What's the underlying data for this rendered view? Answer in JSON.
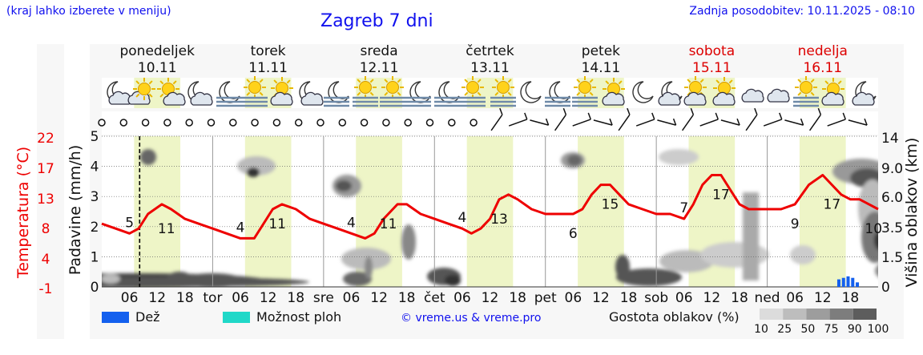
{
  "header": {
    "hint": "(kraj lahko izberete v meniju)",
    "title": "Zagreb 7 dni",
    "updated": "Zadnja posodobitev: 10.11.2025 - 08:10"
  },
  "colors": {
    "temperature": "#ee0000",
    "daylight": "#eef5c7",
    "rain": "#1460ee",
    "storm": "#20d8c8",
    "weekend": "#dd0000",
    "link": "#1010ee"
  },
  "days": [
    {
      "name": "ponedeljek",
      "date": "10.11",
      "weekend": false
    },
    {
      "name": "torek",
      "date": "11.11",
      "weekend": false
    },
    {
      "name": "sreda",
      "date": "12.11",
      "weekend": false
    },
    {
      "name": "četrtek",
      "date": "13.11",
      "weekend": false
    },
    {
      "name": "petek",
      "date": "14.11",
      "weekend": false
    },
    {
      "name": "sobota",
      "date": "15.11",
      "weekend": true
    },
    {
      "name": "nedelja",
      "date": "16.11",
      "weekend": true
    }
  ],
  "x_tick_labels": [
    "06",
    "12",
    "18",
    "tor",
    "06",
    "12",
    "18",
    "sre",
    "06",
    "12",
    "18",
    "čet",
    "06",
    "12",
    "18",
    "pet",
    "06",
    "12",
    "18",
    "sob",
    "06",
    "12",
    "18",
    "ned",
    "06",
    "12",
    "18"
  ],
  "legend": {
    "rain": "Dež",
    "storm": "Možnost ploh",
    "copyright": "© vreme.us & vreme.pro",
    "cloud_density": "Gostota oblakov (%)",
    "cloud_levels": [
      "10",
      "25",
      "50",
      "75",
      "90",
      "100"
    ]
  },
  "chart_data": {
    "type": "line",
    "title": "Zagreb 7 dni",
    "x_unit": "hours since 10.11 00:00",
    "xlim": [
      0,
      168
    ],
    "axes": {
      "temperature": {
        "label": "Temperatura (°C)",
        "ticks": [
          "22",
          "17",
          "13",
          "8",
          "4",
          "-1"
        ]
      },
      "precipitation": {
        "label": "Padavine (mm/h)",
        "ticks": [
          "5",
          "4",
          "3",
          "2",
          "1",
          "0"
        ],
        "ylim": [
          0,
          5
        ]
      },
      "cloud_height": {
        "label": "Višina oblakov (km)",
        "ticks": [
          "14",
          "9.0",
          "6.0",
          "3.5",
          "1.5",
          "0"
        ]
      }
    },
    "temperature_series": {
      "name": "Temperatura",
      "x": [
        0,
        3,
        6,
        8,
        10,
        13,
        15,
        18,
        21,
        24,
        27,
        30,
        33,
        35,
        37,
        39,
        42,
        45,
        48,
        51,
        54,
        57,
        59,
        61,
        64,
        66,
        69,
        72,
        75,
        78,
        80,
        82,
        84,
        86,
        88,
        90,
        93,
        96,
        99,
        102,
        104,
        106,
        108,
        110,
        112,
        114,
        117,
        120,
        123,
        126,
        128,
        130,
        132,
        134,
        136,
        138,
        140,
        142,
        144,
        147,
        150,
        153,
        156,
        158,
        160,
        162,
        164,
        166,
        168
      ],
      "y": [
        8,
        7,
        6,
        7,
        10,
        12,
        11,
        9,
        8,
        7,
        6,
        5,
        5,
        8,
        11,
        12,
        11,
        9,
        8,
        7,
        6,
        5,
        6,
        9,
        12,
        12,
        10,
        9,
        8,
        7,
        6,
        7,
        9,
        13,
        14,
        13,
        11,
        10,
        10,
        10,
        11,
        14,
        16,
        16,
        14,
        12,
        11,
        10,
        10,
        9,
        12,
        16,
        18,
        18,
        15,
        12,
        11,
        11,
        11,
        11,
        12,
        16,
        18,
        16,
        14,
        13,
        13,
        12,
        11
      ]
    },
    "temperature_labels": [
      {
        "x": 6,
        "text": "5"
      },
      {
        "x": 14,
        "text": "11"
      },
      {
        "x": 30,
        "text": "4"
      },
      {
        "x": 38,
        "text": "11"
      },
      {
        "x": 54,
        "text": "4"
      },
      {
        "x": 62,
        "text": "11"
      },
      {
        "x": 78,
        "text": "4"
      },
      {
        "x": 86,
        "text": "13"
      },
      {
        "x": 102,
        "text": "6"
      },
      {
        "x": 110,
        "text": "15"
      },
      {
        "x": 126,
        "text": "7"
      },
      {
        "x": 134,
        "text": "17"
      },
      {
        "x": 150,
        "text": "9"
      },
      {
        "x": 158,
        "text": "17"
      },
      {
        "x": 167,
        "text": "10"
      }
    ],
    "rain": {
      "x": [
        159.5,
        160.5,
        161.5,
        162.5,
        163.5
      ],
      "y": [
        0.25,
        0.3,
        0.35,
        0.3,
        0.15
      ]
    },
    "daylight_hours": [
      [
        7,
        17
      ],
      [
        31,
        41
      ],
      [
        55,
        65
      ],
      [
        79,
        89
      ],
      [
        103,
        113
      ],
      [
        127,
        137
      ],
      [
        151,
        161
      ]
    ],
    "now_hour": 8.2,
    "grid": true
  }
}
